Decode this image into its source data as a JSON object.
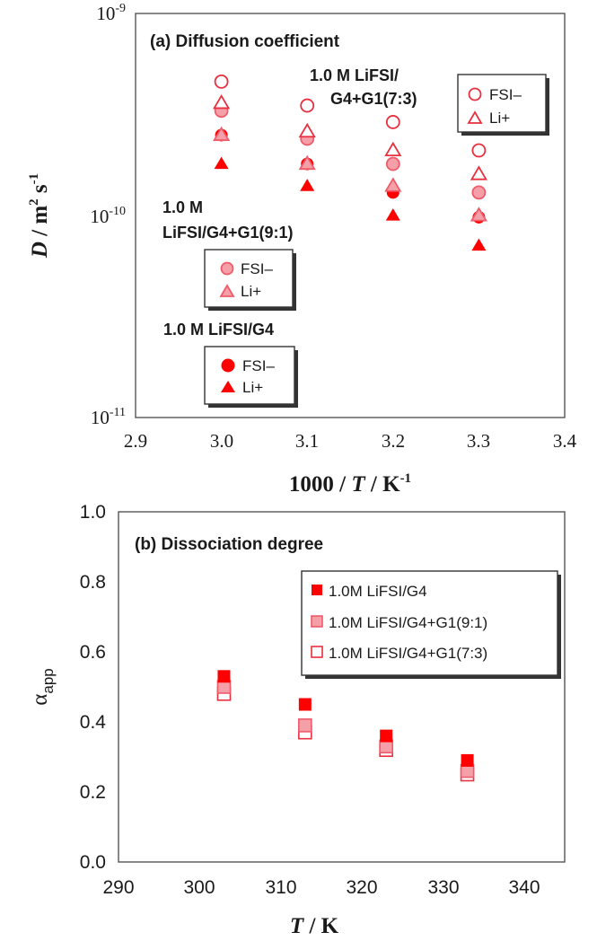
{
  "chart_data": [
    {
      "type": "scatter",
      "panel_title": "(a) Diffusion coefficient",
      "xlabel": {
        "prefix": "1000 / ",
        "italic": "T",
        "middle": " / K",
        "sup": "-1"
      },
      "ylabel": {
        "italic": "D",
        "middle": " /  m",
        "sup1": "2",
        "middle2": " s",
        "sup2": "-1"
      },
      "xlim": [
        2.9,
        3.4
      ],
      "ylim": [
        1e-11,
        1e-09
      ],
      "yscale": "log",
      "grid": false,
      "x_ticks": [
        "2.9",
        "3.0",
        "3.1",
        "3.2",
        "3.3",
        "3.4"
      ],
      "y_ticks": [
        {
          "value": 1e-09,
          "base": "10",
          "exp": "-9"
        },
        {
          "value": 1e-10,
          "base": "10",
          "exp": "-10"
        },
        {
          "value": 1e-11,
          "base": "10",
          "exp": "-11"
        }
      ],
      "colors": {
        "G4": "#ff0000",
        "G91_fill": "#f5a0a8",
        "G91_stroke": "#ef5b6b",
        "G73": "#e8303f"
      },
      "series": [
        {
          "group": "G4",
          "species": "FSI−",
          "marker": "circle",
          "fill": "solid",
          "x": [
            3.0,
            3.1,
            3.2,
            3.3
          ],
          "y": [
            2.5e-10,
            1.8e-10,
            1.3e-10,
            9.8e-11
          ]
        },
        {
          "group": "G4",
          "species": "Li+",
          "marker": "triangle",
          "fill": "solid",
          "x": [
            3.0,
            3.1,
            3.2,
            3.3
          ],
          "y": [
            1.8e-10,
            1.4e-10,
            1e-10,
            7.1e-11
          ]
        },
        {
          "group": "G4+G1(9:1)",
          "species": "FSI−",
          "marker": "circle",
          "fill": "light",
          "x": [
            3.0,
            3.1,
            3.2,
            3.3
          ],
          "y": [
            3.3e-10,
            2.4e-10,
            1.8e-10,
            1.3e-10
          ]
        },
        {
          "group": "G4+G1(9:1)",
          "species": "Li+",
          "marker": "triangle",
          "fill": "light",
          "x": [
            3.0,
            3.1,
            3.2,
            3.3
          ],
          "y": [
            2.5e-10,
            1.8e-10,
            1.4e-10,
            1e-10
          ]
        },
        {
          "group": "G4+G1(7:3)",
          "species": "FSI−",
          "marker": "circle",
          "fill": "open",
          "x": [
            3.0,
            3.1,
            3.2,
            3.3
          ],
          "y": [
            4.6e-10,
            3.5e-10,
            2.9e-10,
            2.1e-10
          ]
        },
        {
          "group": "G4+G1(7:3)",
          "species": "Li+",
          "marker": "triangle",
          "fill": "open",
          "x": [
            3.0,
            3.1,
            3.2,
            3.3
          ],
          "y": [
            3.6e-10,
            2.6e-10,
            2.1e-10,
            1.6e-10
          ]
        }
      ],
      "annotations": {
        "g73_line1": "1.0 M LiFSI/",
        "g73_line2": "G4+G1(7:3)",
        "g91_line1": "1.0 M",
        "g91_line2": "LiFSI/G4+G1(9:1)",
        "g4_line1": "1.0 M LiFSI/G4"
      },
      "legends": {
        "g73": [
          "FSI–",
          "Li+"
        ],
        "g91": [
          "FSI–",
          "Li+"
        ],
        "g4": [
          "FSI–",
          "Li+"
        ]
      }
    },
    {
      "type": "scatter",
      "panel_title": "(b) Dissociation degree",
      "xlabel": {
        "italic": "T",
        "middle": " / K"
      },
      "ylabel": {
        "main": "α",
        "sub": "app"
      },
      "xlim": [
        290,
        345
      ],
      "ylim": [
        0.0,
        1.0
      ],
      "grid": false,
      "x_ticks": [
        "290",
        "300",
        "310",
        "320",
        "330",
        "340"
      ],
      "y_ticks": [
        "0.0",
        "0.2",
        "0.4",
        "0.6",
        "0.8",
        "1.0"
      ],
      "series": [
        {
          "name": "1.0M LiFSI/G4",
          "marker": "square",
          "fill": "solid",
          "x": [
            303,
            313,
            323,
            333
          ],
          "y": [
            0.53,
            0.45,
            0.36,
            0.29
          ]
        },
        {
          "name": "1.0M LiFSI/G4+G1(9:1)",
          "marker": "square",
          "fill": "light",
          "x": [
            303,
            313,
            323,
            333
          ],
          "y": [
            0.5,
            0.39,
            0.33,
            0.26
          ]
        },
        {
          "name": "1.0M LiFSI/G4+G1(7:3)",
          "marker": "square",
          "fill": "open",
          "x": [
            303,
            313,
            323,
            333
          ],
          "y": [
            0.48,
            0.37,
            0.32,
            0.25
          ]
        }
      ],
      "legend_position": "top-right"
    }
  ]
}
